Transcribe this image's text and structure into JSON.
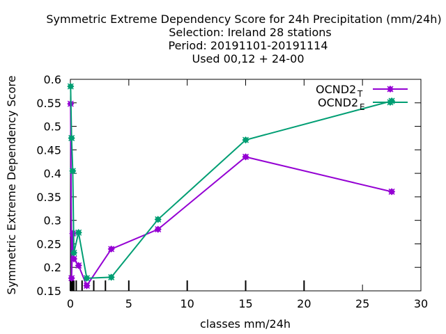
{
  "chart_data": {
    "type": "line",
    "title_lines": [
      "Symmetric Extreme Dependency Score  for 24h Precipitation (mm/24h)",
      "Selection: Ireland     28 stations",
      "Period: 20191101-20191114",
      "Used  00,12  + 24-00"
    ],
    "xlabel": "classes mm/24h",
    "ylabel": "Symmetric Extreme Dependency Score",
    "xlim": [
      0,
      30
    ],
    "ylim": [
      0.15,
      0.6
    ],
    "xticks": [
      0,
      5,
      10,
      15,
      20,
      25,
      30
    ],
    "yticks": [
      0.15,
      0.2,
      0.25,
      0.3,
      0.35,
      0.4,
      0.45,
      0.5,
      0.55,
      0.6
    ],
    "ytick_labels": [
      "0.15",
      "0.2",
      "0.25",
      "0.3",
      "0.35",
      "0.4",
      "0.45",
      "0.5",
      "0.55",
      "0.6"
    ],
    "class_marks": [
      0,
      0.1,
      0.2,
      0.3,
      0.5,
      1,
      2,
      3,
      5,
      10,
      15,
      20
    ],
    "legend_position": "top-right",
    "series": [
      {
        "name": "OCND2",
        "subscript": "T",
        "color": "#9400d3",
        "x": [
          0.02,
          0.1,
          0.2,
          0.3,
          0.7,
          1.4,
          3.5,
          7.5,
          15,
          27.5
        ],
        "y": [
          0.548,
          0.177,
          0.272,
          0.218,
          0.204,
          0.161,
          0.239,
          0.281,
          0.435,
          0.361
        ]
      },
      {
        "name": "OCND2",
        "subscript": "E",
        "color": "#009e73",
        "x": [
          0.02,
          0.1,
          0.2,
          0.3,
          0.7,
          1.4,
          3.5,
          7.5,
          15,
          27.5
        ],
        "y": [
          0.585,
          0.475,
          0.405,
          0.231,
          0.274,
          0.177,
          0.179,
          0.302,
          0.471,
          0.554
        ]
      }
    ]
  }
}
